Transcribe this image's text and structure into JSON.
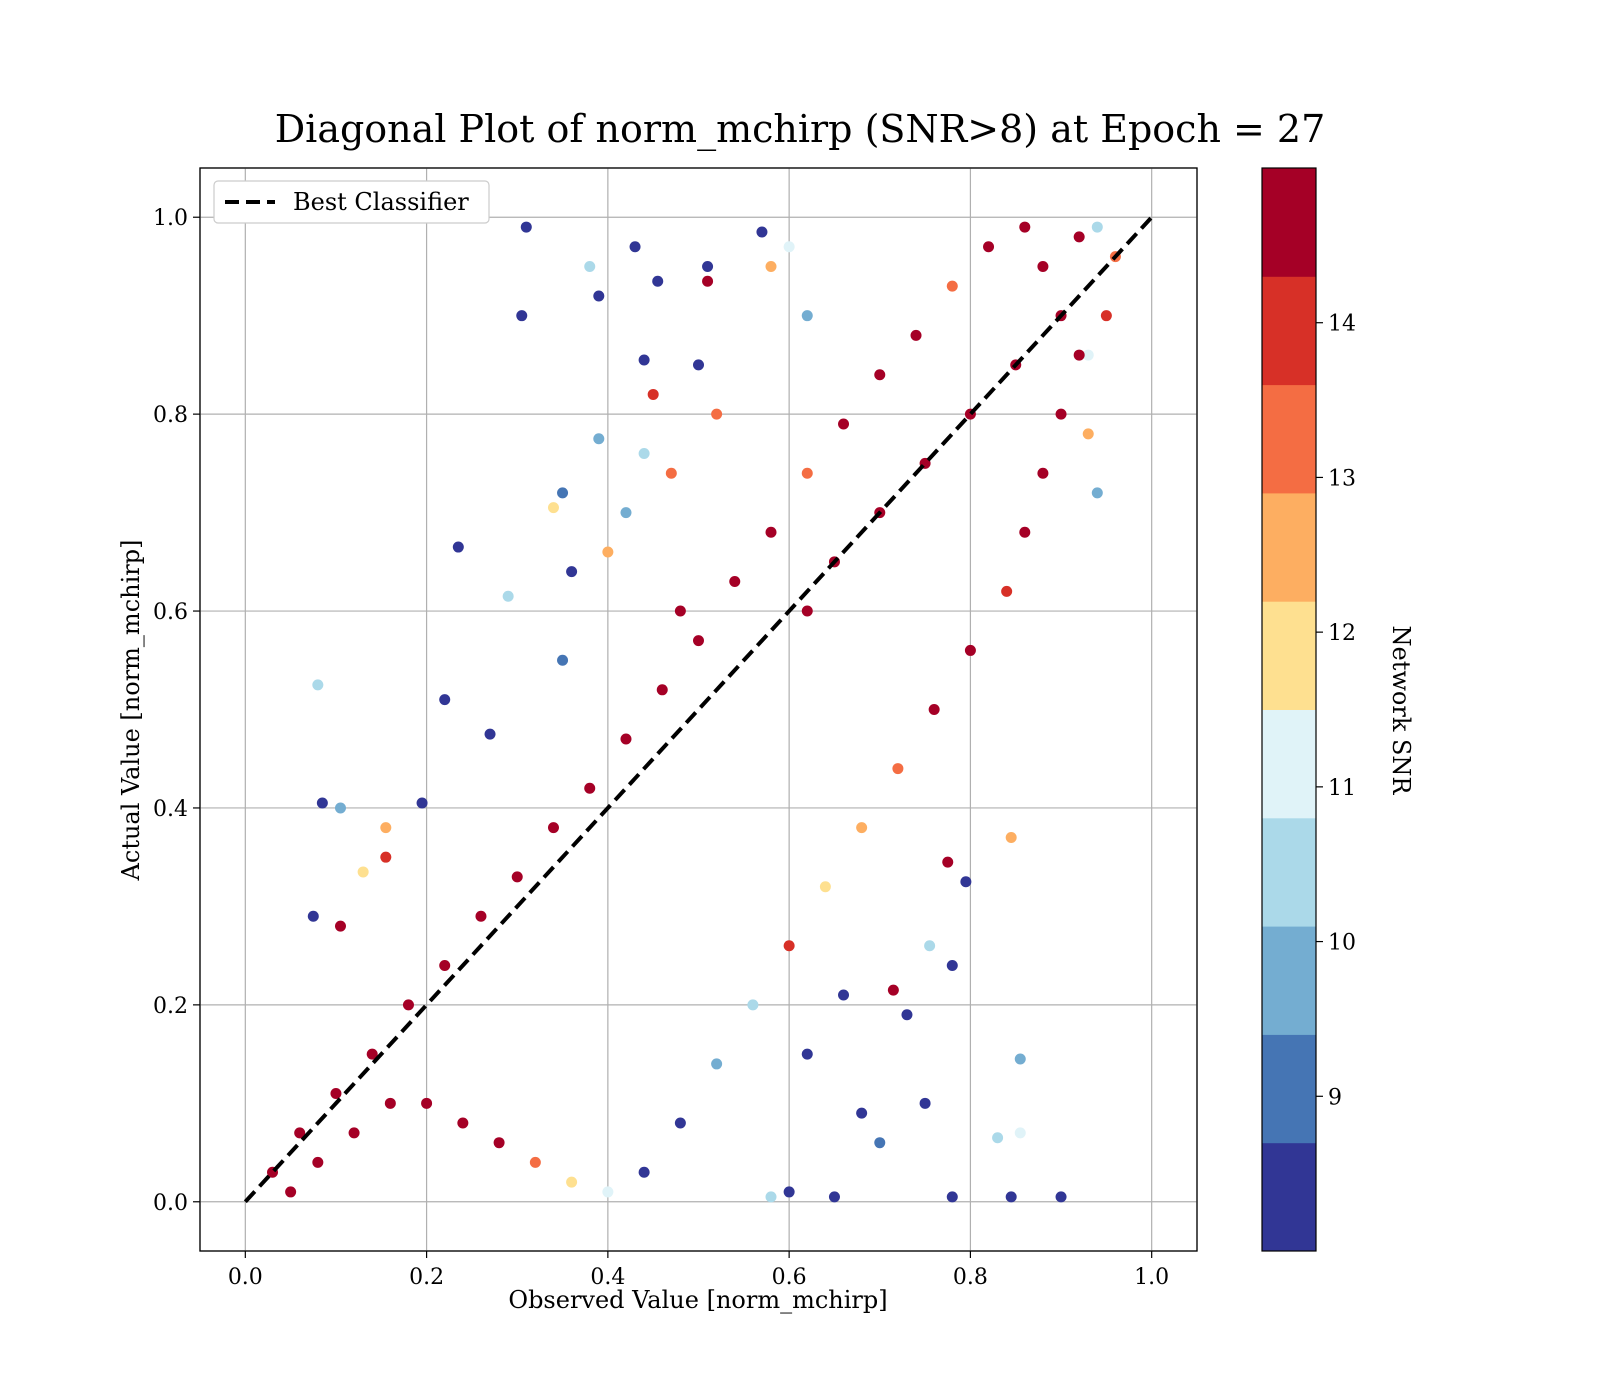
{
  "chart_data": {
    "type": "scatter",
    "title": "Diagonal Plot of norm_mchirp (SNR>8) at Epoch = 27",
    "xlabel": "Observed Value [norm_mchirp]",
    "ylabel": "Actual Value [norm_mchirp]",
    "xlim": [
      -0.05,
      1.05
    ],
    "ylim": [
      -0.05,
      1.05
    ],
    "x_ticks": [
      0.0,
      0.2,
      0.4,
      0.6,
      0.8,
      1.0
    ],
    "y_ticks": [
      0.0,
      0.2,
      0.4,
      0.6,
      0.8,
      1.0
    ],
    "x_tick_labels": [
      "0.0",
      "0.2",
      "0.4",
      "0.6",
      "0.8",
      "1.0"
    ],
    "y_tick_labels": [
      "0.0",
      "0.2",
      "0.4",
      "0.6",
      "0.8",
      "1.0"
    ],
    "grid": true,
    "legend": {
      "placement": "upper-left",
      "entries": [
        "Best Classifier"
      ]
    },
    "reference_line": {
      "name": "Best Classifier",
      "style": "dashed",
      "color": "#000000",
      "x": [
        0.0,
        1.0
      ],
      "y": [
        0.0,
        1.0
      ]
    },
    "colorbar": {
      "label": "Network SNR",
      "range": [
        8,
        15
      ],
      "ticks": [
        9,
        10,
        11,
        12,
        13,
        14
      ],
      "tick_labels": [
        "9",
        "10",
        "11",
        "12",
        "13",
        "14"
      ],
      "colors": [
        "#313695",
        "#4575b4",
        "#74add1",
        "#abd9e9",
        "#e0f3f8",
        "#fee090",
        "#fdae61",
        "#f46d43",
        "#d73027",
        "#a50026"
      ]
    },
    "series": [
      {
        "point_count_note": "",
        "points": [
          [
            0.31,
            0.99,
            8.3
          ],
          [
            0.305,
            0.9,
            8.4
          ],
          [
            0.44,
            0.855,
            8.5
          ],
          [
            0.38,
            0.95,
            10.3
          ],
          [
            0.43,
            0.97,
            8.6
          ],
          [
            0.235,
            0.665,
            8.4
          ],
          [
            0.08,
            0.525,
            10.4
          ],
          [
            0.085,
            0.405,
            8.5
          ],
          [
            0.195,
            0.405,
            8.3
          ],
          [
            0.105,
            0.4,
            9.9
          ],
          [
            0.155,
            0.38,
            12.6
          ],
          [
            0.155,
            0.35,
            14.2
          ],
          [
            0.075,
            0.29,
            8.6
          ],
          [
            0.105,
            0.28,
            14.3
          ],
          [
            0.715,
            0.215,
            14.5
          ],
          [
            0.78,
            0.24,
            8.4
          ],
          [
            0.795,
            0.325,
            8.6
          ],
          [
            0.845,
            0.37,
            12.8
          ],
          [
            0.855,
            0.145,
            10.1
          ],
          [
            0.83,
            0.065,
            10.7
          ],
          [
            0.855,
            0.07,
            11.3
          ],
          [
            0.9,
            0.005,
            8.4
          ],
          [
            0.845,
            0.005,
            8.4
          ],
          [
            0.78,
            0.005,
            8.5
          ],
          [
            0.75,
            0.1,
            8.4
          ],
          [
            0.65,
            0.005,
            8.3
          ],
          [
            0.6,
            0.01,
            8.6
          ],
          [
            0.58,
            0.005,
            10.4
          ],
          [
            0.775,
            0.345,
            14.3
          ],
          [
            0.755,
            0.26,
            10.2
          ],
          [
            0.73,
            0.19,
            8.5
          ],
          [
            0.66,
            0.21,
            8.7
          ],
          [
            0.62,
            0.15,
            8.5
          ],
          [
            0.68,
            0.09,
            8.4
          ],
          [
            0.7,
            0.06,
            9.2
          ],
          [
            0.35,
            0.55,
            8.9
          ],
          [
            0.29,
            0.615,
            10.2
          ],
          [
            0.27,
            0.475,
            8.6
          ],
          [
            0.22,
            0.51,
            8.3
          ],
          [
            0.13,
            0.335,
            11.7
          ],
          [
            0.39,
            0.775,
            9.9
          ],
          [
            0.39,
            0.92,
            8.5
          ],
          [
            0.455,
            0.935,
            8.4
          ],
          [
            0.51,
            0.95,
            8.6
          ],
          [
            0.58,
            0.95,
            12.5
          ],
          [
            0.51,
            0.935,
            14.6
          ],
          [
            0.57,
            0.985,
            8.4
          ],
          [
            0.6,
            0.97,
            11.1
          ],
          [
            0.62,
            0.9,
            9.5
          ],
          [
            0.5,
            0.85,
            8.7
          ],
          [
            0.45,
            0.82,
            14.2
          ],
          [
            0.44,
            0.76,
            10.6
          ],
          [
            0.35,
            0.72,
            8.8
          ],
          [
            0.34,
            0.705,
            11.5
          ],
          [
            0.36,
            0.64,
            8.4
          ],
          [
            0.4,
            0.66,
            12.3
          ],
          [
            0.42,
            0.7,
            9.5
          ],
          [
            0.47,
            0.74,
            12.9
          ],
          [
            0.52,
            0.8,
            13.6
          ],
          [
            0.48,
            0.6,
            14.7
          ],
          [
            0.62,
            0.6,
            14.7
          ],
          [
            0.65,
            0.65,
            14.6
          ],
          [
            0.7,
            0.7,
            14.6
          ],
          [
            0.75,
            0.75,
            14.7
          ],
          [
            0.8,
            0.8,
            14.6
          ],
          [
            0.85,
            0.85,
            14.8
          ],
          [
            0.9,
            0.9,
            14.6
          ],
          [
            0.88,
            0.95,
            14.7
          ],
          [
            0.92,
            0.98,
            14.5
          ],
          [
            0.86,
            0.99,
            14.3
          ],
          [
            0.82,
            0.97,
            14.6
          ],
          [
            0.78,
            0.93,
            13.2
          ],
          [
            0.74,
            0.88,
            14.5
          ],
          [
            0.7,
            0.84,
            14.6
          ],
          [
            0.66,
            0.79,
            14.4
          ],
          [
            0.62,
            0.74,
            13.4
          ],
          [
            0.58,
            0.68,
            14.7
          ],
          [
            0.54,
            0.63,
            14.6
          ],
          [
            0.5,
            0.57,
            14.5
          ],
          [
            0.46,
            0.52,
            14.7
          ],
          [
            0.42,
            0.47,
            14.6
          ],
          [
            0.38,
            0.42,
            14.6
          ],
          [
            0.34,
            0.38,
            14.4
          ],
          [
            0.3,
            0.33,
            14.7
          ],
          [
            0.26,
            0.29,
            14.6
          ],
          [
            0.22,
            0.24,
            14.5
          ],
          [
            0.18,
            0.2,
            14.7
          ],
          [
            0.14,
            0.15,
            14.6
          ],
          [
            0.1,
            0.11,
            14.4
          ],
          [
            0.06,
            0.07,
            14.7
          ],
          [
            0.03,
            0.03,
            14.6
          ],
          [
            0.92,
            0.86,
            14.5
          ],
          [
            0.9,
            0.8,
            14.6
          ],
          [
            0.88,
            0.74,
            14.4
          ],
          [
            0.86,
            0.68,
            14.6
          ],
          [
            0.84,
            0.62,
            13.7
          ],
          [
            0.8,
            0.56,
            14.6
          ],
          [
            0.76,
            0.5,
            14.3
          ],
          [
            0.72,
            0.44,
            13.1
          ],
          [
            0.68,
            0.38,
            12.4
          ],
          [
            0.64,
            0.32,
            11.7
          ],
          [
            0.6,
            0.26,
            14.2
          ],
          [
            0.56,
            0.2,
            10.7
          ],
          [
            0.52,
            0.14,
            9.6
          ],
          [
            0.48,
            0.08,
            8.7
          ],
          [
            0.44,
            0.03,
            8.4
          ],
          [
            0.4,
            0.01,
            10.9
          ],
          [
            0.36,
            0.02,
            12.2
          ],
          [
            0.32,
            0.04,
            13.6
          ],
          [
            0.28,
            0.06,
            14.5
          ],
          [
            0.24,
            0.08,
            14.6
          ],
          [
            0.2,
            0.1,
            14.7
          ],
          [
            0.16,
            0.1,
            14.5
          ],
          [
            0.12,
            0.07,
            14.6
          ],
          [
            0.08,
            0.04,
            14.4
          ],
          [
            0.05,
            0.01,
            14.6
          ],
          [
            0.94,
            0.72,
            9.5
          ],
          [
            0.93,
            0.78,
            12.4
          ],
          [
            0.95,
            0.9,
            14.2
          ],
          [
            0.96,
            0.96,
            13.5
          ],
          [
            0.94,
            0.99,
            10.3
          ],
          [
            0.93,
            0.86,
            10.8
          ]
        ]
      }
    ]
  }
}
